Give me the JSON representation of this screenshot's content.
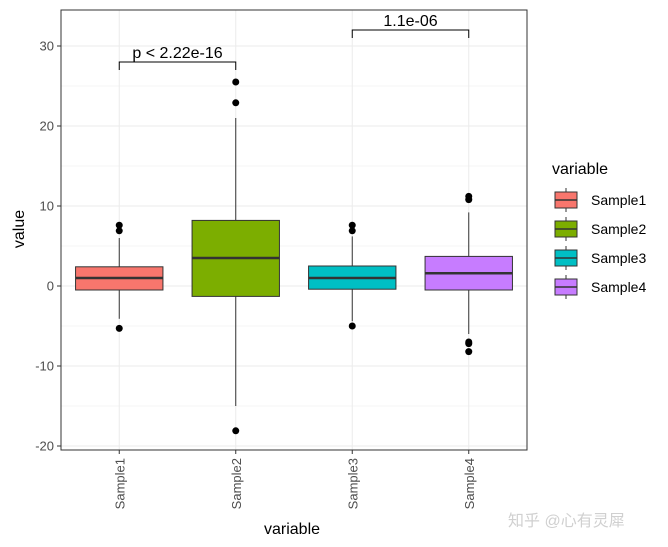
{
  "chart_data": {
    "type": "boxplot",
    "xlabel": "variable",
    "ylabel": "value",
    "ylim": [
      -20.5,
      34.5
    ],
    "yticks": [
      -20,
      -10,
      0,
      10,
      20,
      30
    ],
    "y_tick_labels": [
      "-20",
      "-10",
      "0",
      "10",
      "20",
      "30"
    ],
    "grid": true,
    "legend_position": "right",
    "categories": [
      "Sample1",
      "Sample2",
      "Sample3",
      "Sample4"
    ],
    "series": [
      {
        "name": "Sample1",
        "color": "#F8766D",
        "whisker_low": -4.1,
        "q1": -0.5,
        "median": 1.0,
        "q3": 2.4,
        "whisker_high": 6.0,
        "outliers": [
          -5.3,
          6.9,
          7.6
        ]
      },
      {
        "name": "Sample2",
        "color": "#7CAE00",
        "whisker_low": -15.0,
        "q1": -1.3,
        "median": 3.5,
        "q3": 8.2,
        "whisker_high": 21.0,
        "outliers": [
          -18.1,
          22.9,
          25.5
        ]
      },
      {
        "name": "Sample3",
        "color": "#00BFC4",
        "whisker_low": -4.4,
        "q1": -0.4,
        "median": 1.0,
        "q3": 2.5,
        "whisker_high": 6.2,
        "outliers": [
          -5.0,
          6.9,
          7.6
        ]
      },
      {
        "name": "Sample4",
        "color": "#C77CFF",
        "whisker_low": -6.0,
        "q1": -0.5,
        "median": 1.6,
        "q3": 3.7,
        "whisker_high": 9.2,
        "outliers": [
          -8.2,
          -7.2,
          -7.0,
          10.8,
          11.2
        ]
      }
    ],
    "comparisons": [
      {
        "groups": [
          "Sample1",
          "Sample2"
        ],
        "label": "p < 2.22e-16",
        "y": 28.0,
        "tip": 27.0
      },
      {
        "groups": [
          "Sample3",
          "Sample4"
        ],
        "label": "1.1e-06",
        "y": 32.0,
        "tip": 31.0
      }
    ],
    "legend": {
      "title": "variable",
      "items": [
        "Sample1",
        "Sample2",
        "Sample3",
        "Sample4"
      ]
    }
  },
  "watermark": "知乎 @心有灵犀"
}
